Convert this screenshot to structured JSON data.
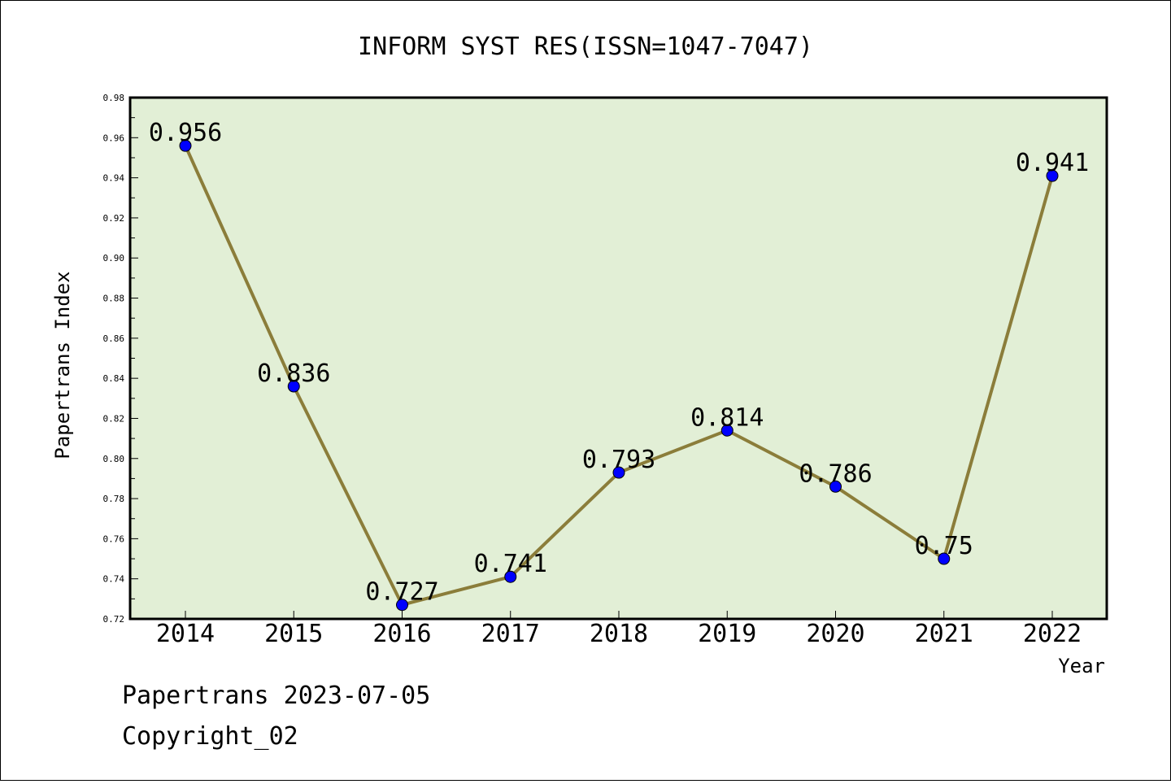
{
  "chart_data": {
    "type": "line",
    "title": "INFORM SYST RES(ISSN=1047-7047)",
    "xlabel": "Year",
    "ylabel": "Papertrans Index",
    "categories": [
      "2014",
      "2015",
      "2016",
      "2017",
      "2018",
      "2019",
      "2020",
      "2021",
      "2022"
    ],
    "series": [
      {
        "values": [
          0.956,
          0.836,
          0.727,
          0.741,
          0.793,
          0.814,
          0.786,
          0.75,
          0.941
        ]
      }
    ],
    "data_labels": [
      "0.956",
      "0.836",
      "0.727",
      "0.741",
      "0.793",
      "0.814",
      "0.786",
      "0.75",
      "0.941"
    ],
    "ylim": [
      0.72,
      0.98
    ],
    "yticks": [
      "0.72",
      "0.74",
      "0.76",
      "0.78",
      "0.80",
      "0.82",
      "0.84",
      "0.86",
      "0.88",
      "0.90",
      "0.92",
      "0.94",
      "0.96",
      "0.98"
    ],
    "grid": false,
    "colors": {
      "plot_background": "#e2efd6",
      "line": "#8b7d3a",
      "marker": "#0000ff"
    }
  },
  "footer": {
    "line1": "Papertrans 2023-07-05",
    "line2": "Copyright_02"
  }
}
